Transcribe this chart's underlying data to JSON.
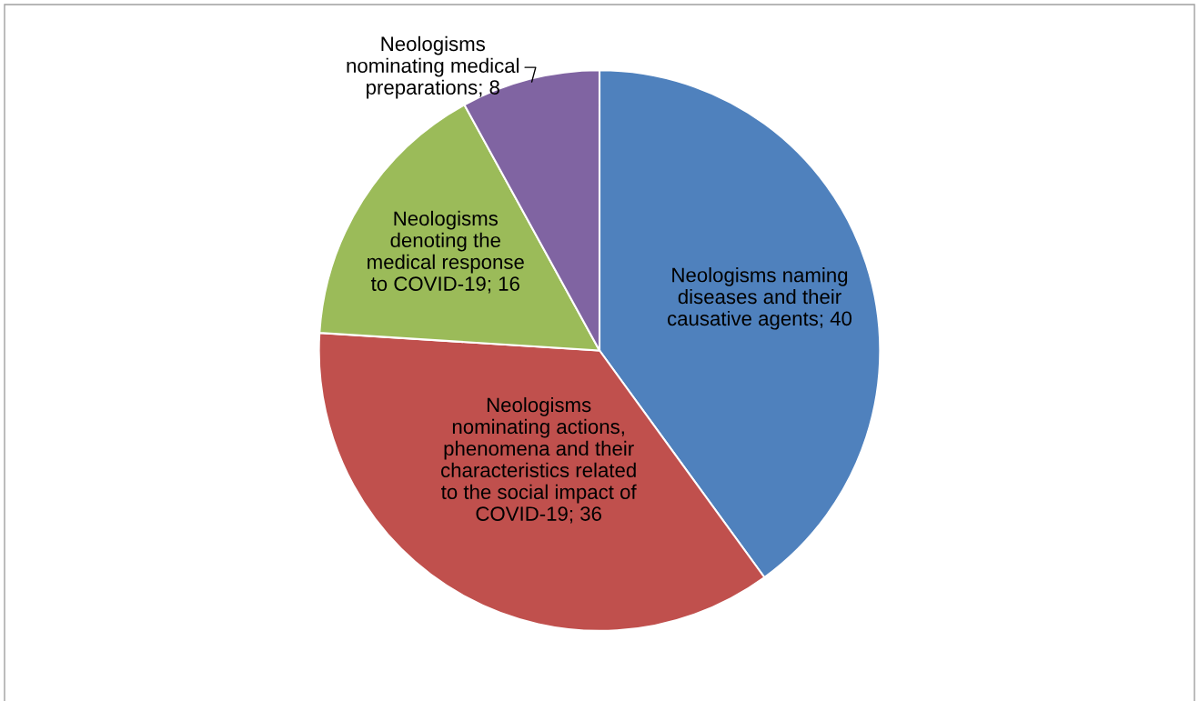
{
  "chart_data": {
    "type": "pie",
    "categories": [
      "Neologisms naming\ndiseases and their\ncausative agents; 40",
      "Neologisms\nnominating actions,\nphenomena and their\ncharacteristics related\nto the social impact of\nCOVID-19; 36",
      "Neologisms\ndenoting the\nmedical response\nto COVID-19; 16",
      "Neologisms\nnominating medical\npreparations; 8"
    ],
    "values": [
      40,
      36,
      16,
      8
    ],
    "colors": [
      "#4f81bd",
      "#c0504d",
      "#9bbb59",
      "#8064a2"
    ]
  }
}
